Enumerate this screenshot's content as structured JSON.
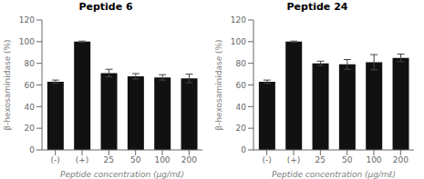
{
  "chart_data": [
    {
      "type": "bar",
      "title": "Peptide 6",
      "categories": [
        "(-)",
        "(+)",
        "25",
        "50",
        "100",
        "200"
      ],
      "values": [
        63,
        100,
        71,
        68,
        67,
        66
      ],
      "errors": [
        1.5,
        0.5,
        3.5,
        2.5,
        2.5,
        4.0
      ],
      "color": "#111111",
      "ylim": [
        0,
        120
      ],
      "yticks": [
        0,
        20,
        40,
        60,
        80,
        100,
        120
      ],
      "xlabel": "Peptide concentration (μg/mℓ)",
      "ylabel": "β-hexosaminidase (%)",
      "grid": false
    },
    {
      "type": "bar",
      "title": "Peptide 24",
      "categories": [
        "(-)",
        "(+)",
        "25",
        "50",
        "100",
        "200"
      ],
      "values": [
        63,
        100,
        80,
        79,
        81,
        85
      ],
      "errors": [
        1.5,
        0.5,
        2.0,
        4.5,
        7.0,
        3.5
      ],
      "color": "#111111",
      "ylim": [
        0,
        120
      ],
      "yticks": [
        0,
        20,
        40,
        60,
        80,
        100,
        120
      ],
      "xlabel": "Peptide concentration (μg/mℓ)",
      "ylabel": "β-hexosaminidase (%)",
      "grid": false
    }
  ]
}
